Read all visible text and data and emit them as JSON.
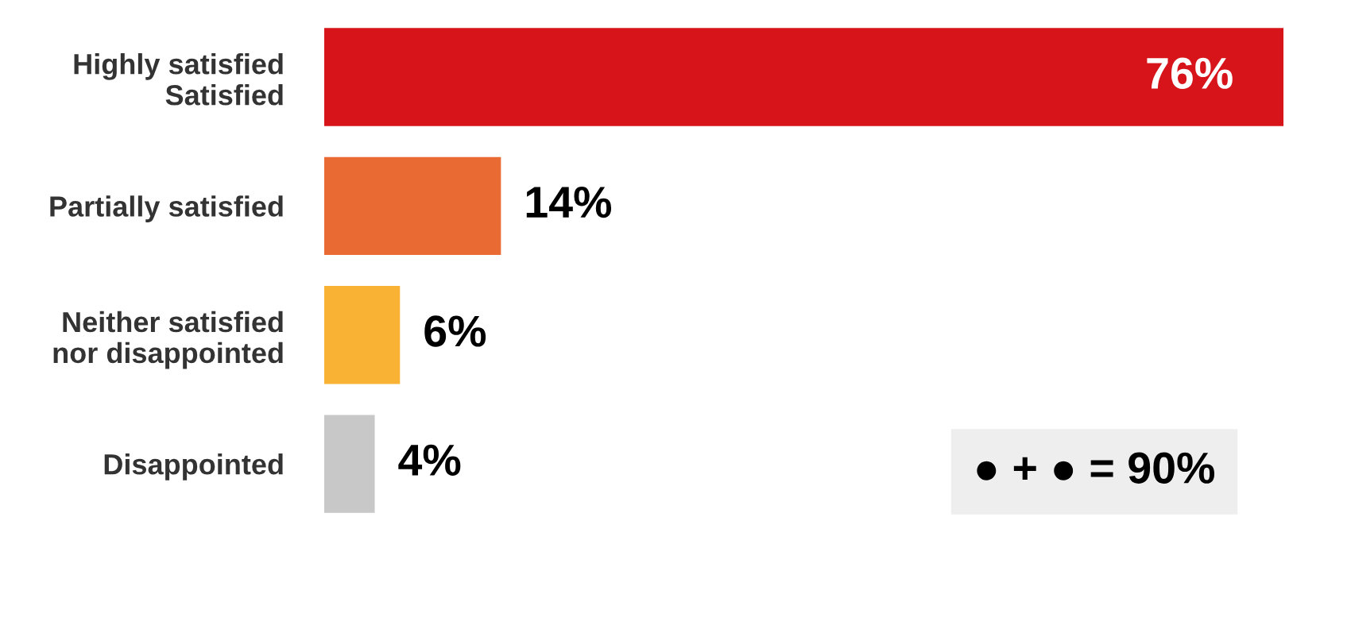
{
  "chart_data": {
    "type": "bar",
    "orientation": "horizontal",
    "categories": [
      "Highly satisfied\nSatisfied",
      "Partially satisfied",
      "Neither satisfied\nnor disappointed",
      "Disappointed"
    ],
    "values": [
      76,
      14,
      6,
      4
    ],
    "colors": [
      "#d7141a",
      "#ea6a33",
      "#f9b233",
      "#c8c8c8"
    ],
    "value_labels": [
      "76%",
      "14%",
      "6%",
      "4%"
    ],
    "grid": false,
    "legend": false,
    "annotations": [
      "● + ● = 90%"
    ]
  }
}
